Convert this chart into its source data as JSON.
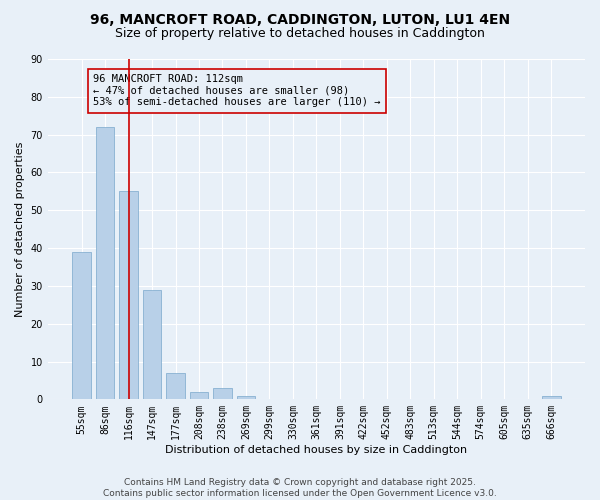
{
  "title": "96, MANCROFT ROAD, CADDINGTON, LUTON, LU1 4EN",
  "subtitle": "Size of property relative to detached houses in Caddington",
  "xlabel": "Distribution of detached houses by size in Caddington",
  "ylabel": "Number of detached properties",
  "categories": [
    "55sqm",
    "86sqm",
    "116sqm",
    "147sqm",
    "177sqm",
    "208sqm",
    "238sqm",
    "269sqm",
    "299sqm",
    "330sqm",
    "361sqm",
    "391sqm",
    "422sqm",
    "452sqm",
    "483sqm",
    "513sqm",
    "544sqm",
    "574sqm",
    "605sqm",
    "635sqm",
    "666sqm"
  ],
  "values": [
    39,
    72,
    55,
    29,
    7,
    2,
    3,
    1,
    0,
    0,
    0,
    0,
    0,
    0,
    0,
    0,
    0,
    0,
    0,
    0,
    1
  ],
  "bar_color": "#b8d0e8",
  "bar_edge_color": "#7aa8cc",
  "background_color": "#e8f0f8",
  "grid_color": "#ffffff",
  "vline_x": 2,
  "vline_color": "#cc0000",
  "annotation_text": "96 MANCROFT ROAD: 112sqm\n← 47% of detached houses are smaller (98)\n53% of semi-detached houses are larger (110) →",
  "annotation_box_color": "#cc0000",
  "ylim": [
    0,
    90
  ],
  "yticks": [
    0,
    10,
    20,
    30,
    40,
    50,
    60,
    70,
    80,
    90
  ],
  "footer": "Contains HM Land Registry data © Crown copyright and database right 2025.\nContains public sector information licensed under the Open Government Licence v3.0.",
  "title_fontsize": 10,
  "subtitle_fontsize": 9,
  "axis_label_fontsize": 8,
  "tick_fontsize": 7,
  "annotation_fontsize": 7.5,
  "footer_fontsize": 6.5
}
